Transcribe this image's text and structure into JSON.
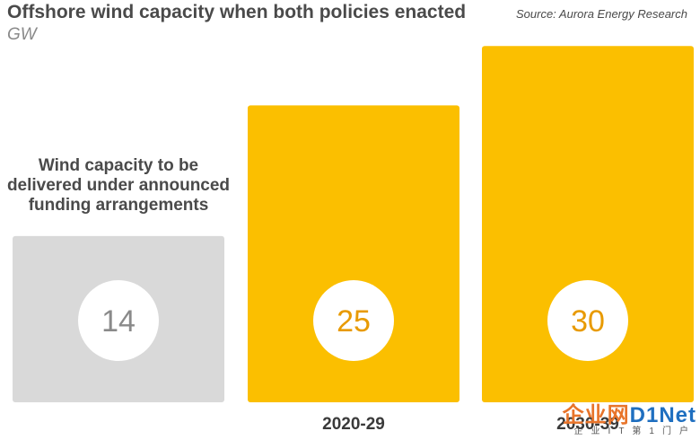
{
  "header": {
    "title": "Offshore wind capacity when both policies enacted",
    "unit": "GW",
    "source": "Source: Aurora Energy Research"
  },
  "annotation": {
    "lines": [
      "Wind capacity to be",
      "delivered under announced",
      "funding arrangements"
    ]
  },
  "colors": {
    "baseline": "#d9d9d9",
    "policy": "#fbbf00",
    "value_text_grey": "#8a8a8a",
    "value_text_orange": "#e89a00"
  },
  "chart_data": {
    "type": "bar",
    "title": "Offshore wind capacity when both policies enacted",
    "ylabel": "GW",
    "categories": [
      "",
      "2020-29",
      "2030-39"
    ],
    "values": [
      14,
      25,
      30
    ],
    "value_labels": [
      "14",
      "25",
      "30"
    ],
    "ylim": [
      0,
      31
    ],
    "grid": false,
    "legend": "none"
  },
  "watermark": {
    "main_a": "企业网",
    "main_b": "D1Net",
    "sub": "企业IT第1门户"
  }
}
